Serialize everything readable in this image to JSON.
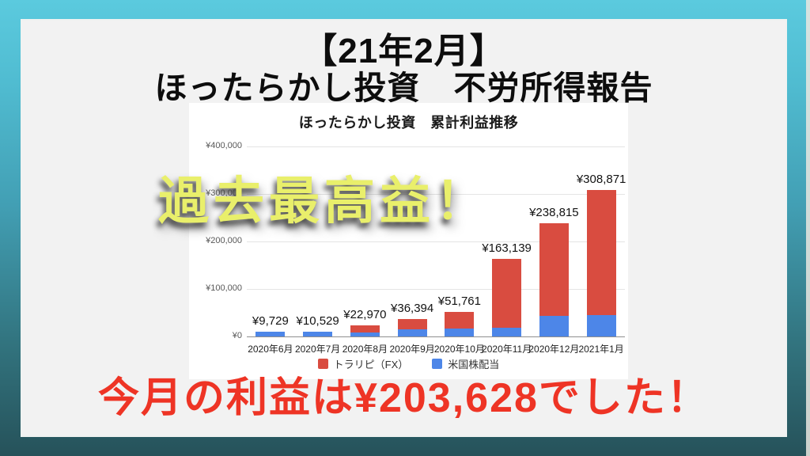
{
  "background": {
    "gradient_top": "#5bcade",
    "gradient_bottom": "#26525a",
    "panel_color": "#f2f2f2"
  },
  "header": {
    "title_line1": "【21年2月】",
    "title_line2": "ほったらかし投資　不労所得報告"
  },
  "overlay": {
    "highlight_text": "過去最高益！",
    "color": "#e9ef6b"
  },
  "footer": {
    "message": "今月の利益は¥203,628でした！",
    "color": "#ee3425"
  },
  "chart_data": {
    "type": "bar",
    "stacked": true,
    "title": "ほったらかし投資　累計利益推移",
    "categories": [
      "2020年6月",
      "2020年7月",
      "2020年8月",
      "2020年9月",
      "2020年10月",
      "2020年11月",
      "2020年12月",
      "2021年1月"
    ],
    "series": [
      {
        "name": "トラリピ（FX）",
        "color": "#d94c40",
        "values": [
          0,
          0,
          13970,
          21394,
          34761,
          145139,
          195815,
          263871
        ]
      },
      {
        "name": "米国株配当",
        "color": "#4d86e8",
        "values": [
          9729,
          10529,
          9000,
          15000,
          17000,
          18000,
          43000,
          45000
        ]
      }
    ],
    "totals": [
      9729,
      10529,
      22970,
      36394,
      51761,
      163139,
      238815,
      308871
    ],
    "total_labels": [
      "¥9,729",
      "¥10,529",
      "¥22,970",
      "¥36,394",
      "¥51,761",
      "¥163,139",
      "¥238,815",
      "¥308,871"
    ],
    "xlabel": "",
    "ylabel": "",
    "ylim": [
      0,
      400000
    ],
    "y_ticks": [
      {
        "value": 0,
        "label": "¥0"
      },
      {
        "value": 100000,
        "label": "¥100,000"
      },
      {
        "value": 200000,
        "label": "¥200,000"
      },
      {
        "value": 300000,
        "label": "¥300,000"
      },
      {
        "value": 400000,
        "label": "¥400,000"
      }
    ],
    "grid": true,
    "legend_position": "bottom"
  }
}
